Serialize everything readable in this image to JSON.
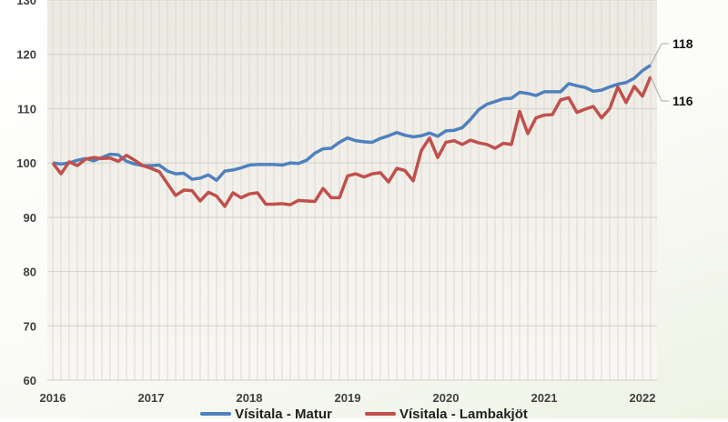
{
  "chart_data": {
    "type": "line",
    "title": "",
    "xlabel": "",
    "ylabel": "",
    "ylim": [
      60,
      130
    ],
    "yticks": [
      60,
      70,
      80,
      90,
      100,
      110,
      120,
      130
    ],
    "xticks": [
      "2016",
      "2017",
      "2018",
      "2019",
      "2020",
      "2021",
      "2022"
    ],
    "x_start": "2016-01",
    "x_frequency": "monthly",
    "grid": true,
    "legend": "bottom",
    "end_labels": [
      "118",
      "116"
    ],
    "series": [
      {
        "name": "Vísitala - Matur",
        "color": "#4f81bd",
        "values": [
          100,
          99.8,
          100,
          100.5,
          100.8,
          100.4,
          101,
          101.6,
          101.5,
          100.3,
          99.8,
          99.5,
          99.5,
          99.6,
          98.5,
          98,
          98.1,
          97,
          97.2,
          97.8,
          96.8,
          98.5,
          98.7,
          99.1,
          99.6,
          99.7,
          99.7,
          99.7,
          99.6,
          100,
          99.9,
          100.5,
          101.8,
          102.6,
          102.7,
          103.8,
          104.6,
          104.1,
          103.9,
          103.8,
          104.5,
          105,
          105.6,
          105.1,
          104.8,
          105,
          105.5,
          104.9,
          105.9,
          106,
          106.5,
          108,
          109.8,
          110.8,
          111.3,
          111.8,
          111.9,
          113,
          112.8,
          112.4,
          113.1,
          113.1,
          113.1,
          114.6,
          114.2,
          113.9,
          113.2,
          113.4,
          114,
          114.5,
          114.8,
          115.6,
          117,
          118
        ]
      },
      {
        "name": "Vísitala - Lambakjöt",
        "color": "#c0504d",
        "values": [
          100,
          98,
          100.2,
          99.5,
          100.7,
          101,
          100.8,
          100.9,
          100.3,
          101.4,
          100.5,
          99.5,
          99,
          98.4,
          96.2,
          94,
          95,
          94.9,
          93,
          94.6,
          93.9,
          92,
          94.5,
          93.6,
          94.3,
          94.5,
          92.4,
          92.4,
          92.5,
          92.3,
          93.1,
          93,
          92.9,
          95.3,
          93.6,
          93.6,
          97.6,
          98,
          97.4,
          98,
          98.2,
          96.5,
          99,
          98.6,
          96.7,
          102.3,
          104.6,
          101,
          103.8,
          104.1,
          103.4,
          104.2,
          103.7,
          103.4,
          102.7,
          103.6,
          103.4,
          109.5,
          105.4,
          108.3,
          108.8,
          108.9,
          111.6,
          112,
          109.3,
          109.9,
          110.4,
          108.3,
          110,
          114,
          111.1,
          114.1,
          112.3,
          115.9
        ]
      }
    ]
  }
}
